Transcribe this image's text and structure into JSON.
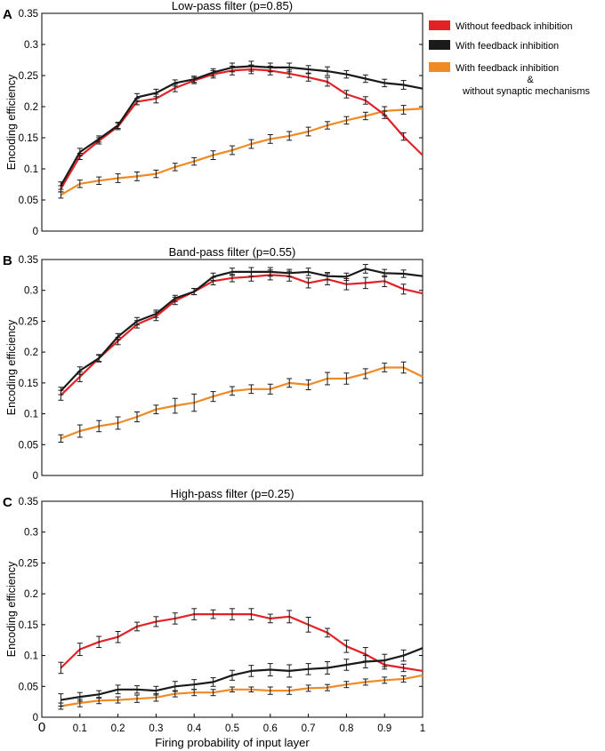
{
  "legend": {
    "entries": [
      {
        "name": "Without feedback inhibition",
        "color": "#e32227"
      },
      {
        "name": "With feedback inhibition",
        "color": "#1a1a1a"
      },
      {
        "name": "With feedback inhibition",
        "name_line2": "&",
        "name_line3": "without synaptic mechanisms",
        "color": "#f08a24"
      }
    ]
  },
  "shared_xlabel": "Firing probability of input layer",
  "chart_data": [
    {
      "type": "line",
      "panel_letter": "A",
      "title": "Low-pass filter (p=0.85)",
      "xlabel": "",
      "ylabel": "Encoding efficiency",
      "xlim": [
        0,
        1
      ],
      "ylim": [
        0,
        0.35
      ],
      "xticks": [],
      "xtick_labels": [],
      "yticks": [
        0,
        0.05,
        0.1,
        0.15,
        0.2,
        0.25,
        0.3,
        0.35
      ],
      "ytick_labels": [
        "0",
        "0.05",
        "0.1",
        "0.15",
        "0.2",
        "0.25",
        "0.3",
        "0.35"
      ],
      "x": [
        0.05,
        0.1,
        0.15,
        0.2,
        0.25,
        0.3,
        0.35,
        0.4,
        0.45,
        0.5,
        0.55,
        0.6,
        0.65,
        0.7,
        0.75,
        0.8,
        0.85,
        0.9,
        0.95,
        1.0
      ],
      "series": [
        {
          "name": "Without feedback inhibition",
          "color": "#e32227",
          "values": [
            0.068,
            0.12,
            0.145,
            0.168,
            0.208,
            0.213,
            0.23,
            0.242,
            0.252,
            0.258,
            0.26,
            0.258,
            0.253,
            0.247,
            0.24,
            0.22,
            0.21,
            0.187,
            0.152,
            0.122
          ],
          "errors": [
            0.005,
            0.005,
            0.005,
            0.005,
            0.005,
            0.007,
            0.006,
            0.005,
            0.006,
            0.007,
            0.007,
            0.007,
            0.006,
            0.006,
            0.007,
            0.006,
            0.006,
            0.006,
            0.006,
            0
          ]
        },
        {
          "name": "With feedback inhibition",
          "color": "#1a1a1a",
          "values": [
            0.073,
            0.127,
            0.148,
            0.17,
            0.215,
            0.222,
            0.238,
            0.244,
            0.255,
            0.263,
            0.265,
            0.263,
            0.263,
            0.26,
            0.257,
            0.252,
            0.245,
            0.238,
            0.235,
            0.229
          ],
          "errors": [
            0.006,
            0.006,
            0.005,
            0.005,
            0.006,
            0.006,
            0.005,
            0.005,
            0.006,
            0.007,
            0.008,
            0.007,
            0.007,
            0.006,
            0.007,
            0.006,
            0.006,
            0.006,
            0.007,
            0
          ]
        },
        {
          "name": "With feedback inhibition & without synaptic mechanisms",
          "color": "#f08a24",
          "values": [
            0.058,
            0.076,
            0.081,
            0.085,
            0.088,
            0.092,
            0.103,
            0.112,
            0.122,
            0.13,
            0.14,
            0.148,
            0.153,
            0.16,
            0.17,
            0.178,
            0.185,
            0.193,
            0.195,
            0.197
          ],
          "errors": [
            0.005,
            0.006,
            0.006,
            0.007,
            0.007,
            0.006,
            0.006,
            0.006,
            0.007,
            0.007,
            0.007,
            0.007,
            0.007,
            0.007,
            0.006,
            0.006,
            0.006,
            0.007,
            0.007,
            0
          ]
        }
      ]
    },
    {
      "type": "line",
      "panel_letter": "B",
      "title": "Band-pass filter (p=0.55)",
      "xlabel": "",
      "ylabel": "Encoding efficiency",
      "xlim": [
        0,
        1
      ],
      "ylim": [
        0,
        0.35
      ],
      "xticks": [],
      "xtick_labels": [],
      "yticks": [
        0,
        0.05,
        0.1,
        0.15,
        0.2,
        0.25,
        0.3,
        0.35
      ],
      "ytick_labels": [
        "0",
        "0.05",
        "0.1",
        "0.15",
        "0.2",
        "0.25",
        "0.3",
        "0.35"
      ],
      "x": [
        0.05,
        0.1,
        0.15,
        0.2,
        0.25,
        0.3,
        0.35,
        0.4,
        0.45,
        0.5,
        0.55,
        0.6,
        0.65,
        0.7,
        0.75,
        0.8,
        0.85,
        0.9,
        0.95,
        1.0
      ],
      "series": [
        {
          "name": "Without feedback inhibition",
          "color": "#e32227",
          "values": [
            0.13,
            0.16,
            0.19,
            0.218,
            0.245,
            0.258,
            0.283,
            0.298,
            0.315,
            0.32,
            0.322,
            0.325,
            0.323,
            0.312,
            0.318,
            0.31,
            0.312,
            0.315,
            0.302,
            0.295
          ],
          "errors": [
            0.008,
            0.008,
            0.006,
            0.006,
            0.006,
            0.007,
            0.006,
            0.005,
            0.006,
            0.006,
            0.007,
            0.008,
            0.008,
            0.008,
            0.009,
            0.009,
            0.009,
            0.009,
            0.008,
            0
          ]
        },
        {
          "name": "With feedback inhibition",
          "color": "#1a1a1a",
          "values": [
            0.137,
            0.17,
            0.19,
            0.225,
            0.25,
            0.262,
            0.287,
            0.298,
            0.322,
            0.33,
            0.33,
            0.33,
            0.328,
            0.33,
            0.323,
            0.322,
            0.335,
            0.328,
            0.327,
            0.323
          ],
          "errors": [
            0.006,
            0.006,
            0.005,
            0.005,
            0.006,
            0.006,
            0.005,
            0.005,
            0.006,
            0.006,
            0.007,
            0.007,
            0.006,
            0.006,
            0.006,
            0.006,
            0.007,
            0.006,
            0.006,
            0
          ]
        },
        {
          "name": "With feedback inhibition & without synaptic mechanisms",
          "color": "#f08a24",
          "values": [
            0.06,
            0.072,
            0.08,
            0.085,
            0.095,
            0.107,
            0.113,
            0.118,
            0.128,
            0.137,
            0.14,
            0.14,
            0.15,
            0.147,
            0.157,
            0.157,
            0.165,
            0.175,
            0.175,
            0.16
          ],
          "errors": [
            0.006,
            0.01,
            0.009,
            0.01,
            0.008,
            0.007,
            0.012,
            0.014,
            0.008,
            0.007,
            0.007,
            0.008,
            0.007,
            0.008,
            0.01,
            0.009,
            0.008,
            0.007,
            0.009,
            0
          ]
        }
      ]
    },
    {
      "type": "line",
      "panel_letter": "C",
      "title": "High-pass filter (p=0.25)",
      "xlabel": "Firing probability of input layer",
      "ylabel": "Encoding efficiency",
      "xlim": [
        0,
        1
      ],
      "ylim": [
        0,
        0.35
      ],
      "xticks": [
        0,
        0.1,
        0.2,
        0.3,
        0.4,
        0.5,
        0.6,
        0.7,
        0.8,
        0.9,
        1
      ],
      "xtick_labels": [
        "0",
        "0.1",
        "0.2",
        "0.3",
        "0.4",
        "0.5",
        "0.6",
        "0.7",
        "0.8",
        "0.9",
        "1"
      ],
      "yticks": [
        0,
        0.05,
        0.1,
        0.15,
        0.2,
        0.25,
        0.3,
        0.35
      ],
      "ytick_labels": [
        "0",
        "0.05",
        "0.1",
        "0.15",
        "0.2",
        "0.25",
        "0.3",
        "0.35"
      ],
      "x": [
        0.05,
        0.1,
        0.15,
        0.2,
        0.25,
        0.3,
        0.35,
        0.4,
        0.45,
        0.5,
        0.55,
        0.6,
        0.65,
        0.7,
        0.75,
        0.8,
        0.85,
        0.9,
        0.95,
        1.0
      ],
      "series": [
        {
          "name": "Without feedback inhibition",
          "color": "#e32227",
          "values": [
            0.08,
            0.11,
            0.122,
            0.13,
            0.147,
            0.155,
            0.16,
            0.167,
            0.167,
            0.167,
            0.167,
            0.16,
            0.163,
            0.15,
            0.137,
            0.115,
            0.102,
            0.085,
            0.08,
            0.075
          ],
          "errors": [
            0.009,
            0.01,
            0.009,
            0.009,
            0.007,
            0.008,
            0.009,
            0.009,
            0.007,
            0.009,
            0.009,
            0.007,
            0.01,
            0.012,
            0.007,
            0.01,
            0.011,
            0.007,
            0.006,
            0
          ]
        },
        {
          "name": "With feedback inhibition",
          "color": "#1a1a1a",
          "values": [
            0.028,
            0.033,
            0.037,
            0.045,
            0.045,
            0.043,
            0.05,
            0.053,
            0.057,
            0.068,
            0.075,
            0.077,
            0.075,
            0.078,
            0.08,
            0.085,
            0.09,
            0.092,
            0.1,
            0.112
          ],
          "errors": [
            0.01,
            0.007,
            0.006,
            0.007,
            0.006,
            0.007,
            0.008,
            0.008,
            0.007,
            0.008,
            0.009,
            0.01,
            0.01,
            0.009,
            0.01,
            0.009,
            0.01,
            0.01,
            0.009,
            0
          ]
        },
        {
          "name": "With feedback inhibition & without synaptic mechanisms",
          "color": "#f08a24",
          "values": [
            0.018,
            0.023,
            0.027,
            0.028,
            0.03,
            0.032,
            0.038,
            0.04,
            0.04,
            0.045,
            0.045,
            0.043,
            0.043,
            0.047,
            0.048,
            0.053,
            0.057,
            0.06,
            0.062,
            0.068
          ],
          "errors": [
            0.005,
            0.006,
            0.005,
            0.005,
            0.006,
            0.006,
            0.005,
            0.005,
            0.005,
            0.004,
            0.004,
            0.006,
            0.006,
            0.005,
            0.005,
            0.005,
            0.005,
            0.005,
            0.005,
            0
          ]
        }
      ]
    }
  ]
}
